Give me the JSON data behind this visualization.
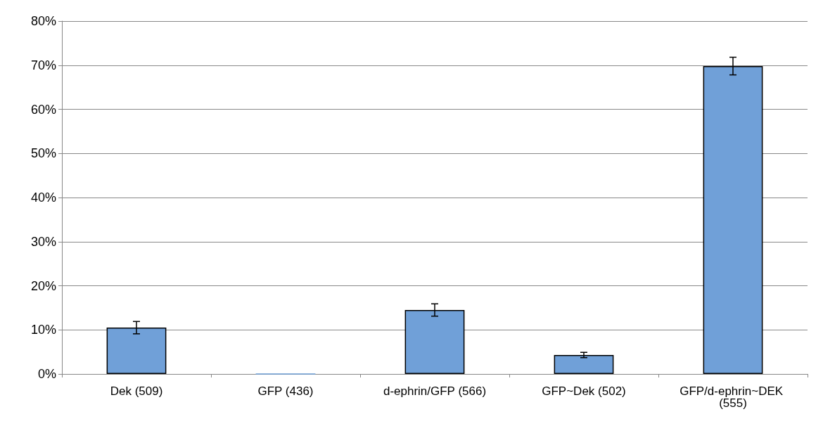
{
  "chart_data": {
    "type": "bar",
    "categories": [
      "Dek (509)",
      "GFP (436)",
      "d-ephrin/GFP (566)",
      "GFP~Dek (502)",
      "GFP/d-ephrin~DEK (555)"
    ],
    "values": [
      10.5,
      0,
      14.5,
      4.3,
      69.8
    ],
    "errors": [
      1.4,
      null,
      1.4,
      0.6,
      2
    ],
    "color": "#70a0d8",
    "ylim": [
      0,
      80
    ],
    "yticks": [
      {
        "value": 0,
        "label": "0%"
      },
      {
        "value": 10,
        "label": "10%"
      },
      {
        "value": 20,
        "label": "20%"
      },
      {
        "value": 30,
        "label": "30%"
      },
      {
        "value": 40,
        "label": "40%"
      },
      {
        "value": 50,
        "label": "50%"
      },
      {
        "value": 60,
        "label": "60%"
      },
      {
        "value": 70,
        "label": "70%"
      },
      {
        "value": 80,
        "label": "80%"
      }
    ],
    "grid": "y"
  }
}
